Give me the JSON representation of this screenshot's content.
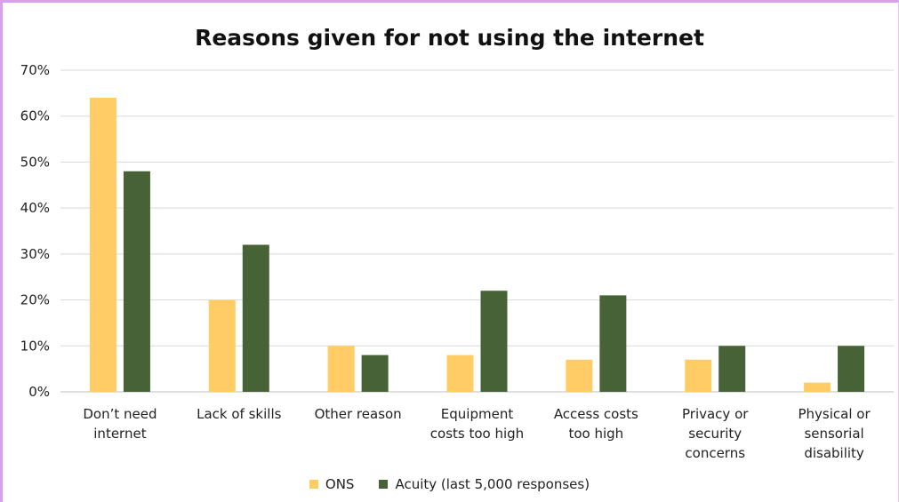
{
  "chart_data": {
    "type": "bar",
    "title": "Reasons given for not using the internet",
    "xlabel": "",
    "ylabel": "",
    "ylim": [
      0,
      70
    ],
    "yticks": [
      "0%",
      "10%",
      "20%",
      "30%",
      "40%",
      "50%",
      "60%",
      "70%"
    ],
    "categories": [
      [
        "Don’t need",
        "internet"
      ],
      [
        "Lack of skills"
      ],
      [
        "Other reason"
      ],
      [
        "Equipment",
        "costs too high"
      ],
      [
        "Access costs",
        "too high"
      ],
      [
        "Privacy or",
        "security",
        "concerns"
      ],
      [
        "Physical or",
        "sensorial",
        "disability"
      ]
    ],
    "series": [
      {
        "name": "ONS",
        "color": "#ffcc66",
        "values": [
          64,
          20,
          10,
          8,
          7,
          7,
          2
        ]
      },
      {
        "name": "Acuity (last 5,000 responses)",
        "color": "#466236",
        "values": [
          48,
          32,
          8,
          22,
          21,
          10,
          10
        ]
      }
    ],
    "grid": true,
    "legend_position": "bottom"
  },
  "colors": {
    "frame_border": "#d9a0f0",
    "gridline": "#d9d9d9",
    "axis": "#bfbfbf"
  }
}
